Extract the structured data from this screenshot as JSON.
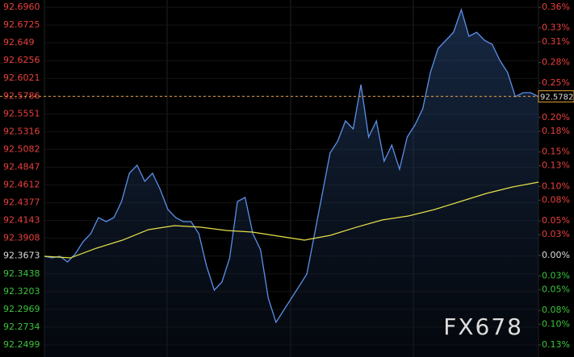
{
  "chart_data": {
    "type": "line",
    "series": [
      {
        "name": "price",
        "color": "#5b8fe8",
        "values": [
          92.367,
          92.3649,
          92.367,
          92.3596,
          92.3702,
          92.3862,
          92.3968,
          92.4181,
          92.4128,
          92.4181,
          92.4394,
          92.4767,
          92.4873,
          92.466,
          92.4767,
          92.4554,
          92.4288,
          92.4181,
          92.4128,
          92.4128,
          92.3968,
          92.3542,
          92.3223,
          92.3329,
          92.3649,
          92.4394,
          92.4447,
          92.3968,
          92.3755,
          92.3116,
          92.2797,
          92.2957,
          92.3116,
          92.3276,
          92.3436,
          92.3968,
          92.4501,
          92.5033,
          92.5193,
          92.5459,
          92.5352,
          92.5938,
          92.5246,
          92.5459,
          92.4926,
          92.5139,
          92.482,
          92.5246,
          92.5406,
          92.5618,
          92.6098,
          92.6417,
          92.6523,
          92.663,
          92.6928,
          92.6577,
          92.663,
          92.6523,
          92.647,
          92.6257,
          92.6098,
          92.5778,
          92.5831,
          92.5831,
          92.5778
        ]
      },
      {
        "name": "average",
        "color": "#e6e04a",
        "values": [
          92.367,
          92.3649,
          92.3777,
          92.3883,
          92.4022,
          92.4075,
          92.4054,
          92.4011,
          92.399,
          92.3936,
          92.3883,
          92.3947,
          92.4054,
          92.415,
          92.4203,
          92.4288,
          92.4394,
          92.4501,
          92.4586,
          92.465
        ]
      }
    ],
    "ylim": [
      92.2499,
      92.696
    ],
    "yticks": [
      {
        "value": 92.696,
        "label": "92.6960"
      },
      92.6725,
      92.649,
      92.6256,
      92.6021,
      92.5786,
      92.5551,
      92.5316,
      92.5082,
      92.4847,
      92.4612,
      92.4377,
      92.4143,
      92.3908,
      92.3673,
      92.3438,
      92.3203,
      92.2969,
      92.2734,
      92.2499
    ],
    "y2lim": [
      -0.13,
      0.36
    ],
    "y2ticks": [
      {
        "value": 0.36,
        "label": "0.36%"
      },
      {
        "value": 0.33,
        "label": "0.33%"
      },
      {
        "value": 0.31,
        "label": "0.31%"
      },
      {
        "value": 0.28,
        "label": "0.28%"
      },
      {
        "value": 0.25,
        "label": "0.25%"
      },
      {
        "value": 0.23,
        "label": "0.23%"
      },
      {
        "value": 0.2,
        "label": "0.20%"
      },
      {
        "value": 0.18,
        "label": "0.18%"
      },
      {
        "value": 0.15,
        "label": "0.15%"
      },
      {
        "value": 0.13,
        "label": "0.13%"
      },
      {
        "value": 0.1,
        "label": "0.10%"
      },
      {
        "value": 0.08,
        "label": "0.08%"
      },
      {
        "value": 0.05,
        "label": "0.05%"
      },
      {
        "value": 0.03,
        "label": "0.03%"
      },
      {
        "value": 0,
        "label": "0.00%"
      },
      {
        "value": -0.03,
        "label": "0.03%"
      },
      {
        "value": -0.05,
        "label": "0.05%"
      },
      {
        "value": -0.08,
        "label": "0.08%"
      },
      {
        "value": -0.1,
        "label": "0.10%"
      },
      {
        "value": -0.13,
        "label": "0.13%"
      }
    ],
    "last_value": 92.5782,
    "watermark": "FX678"
  }
}
